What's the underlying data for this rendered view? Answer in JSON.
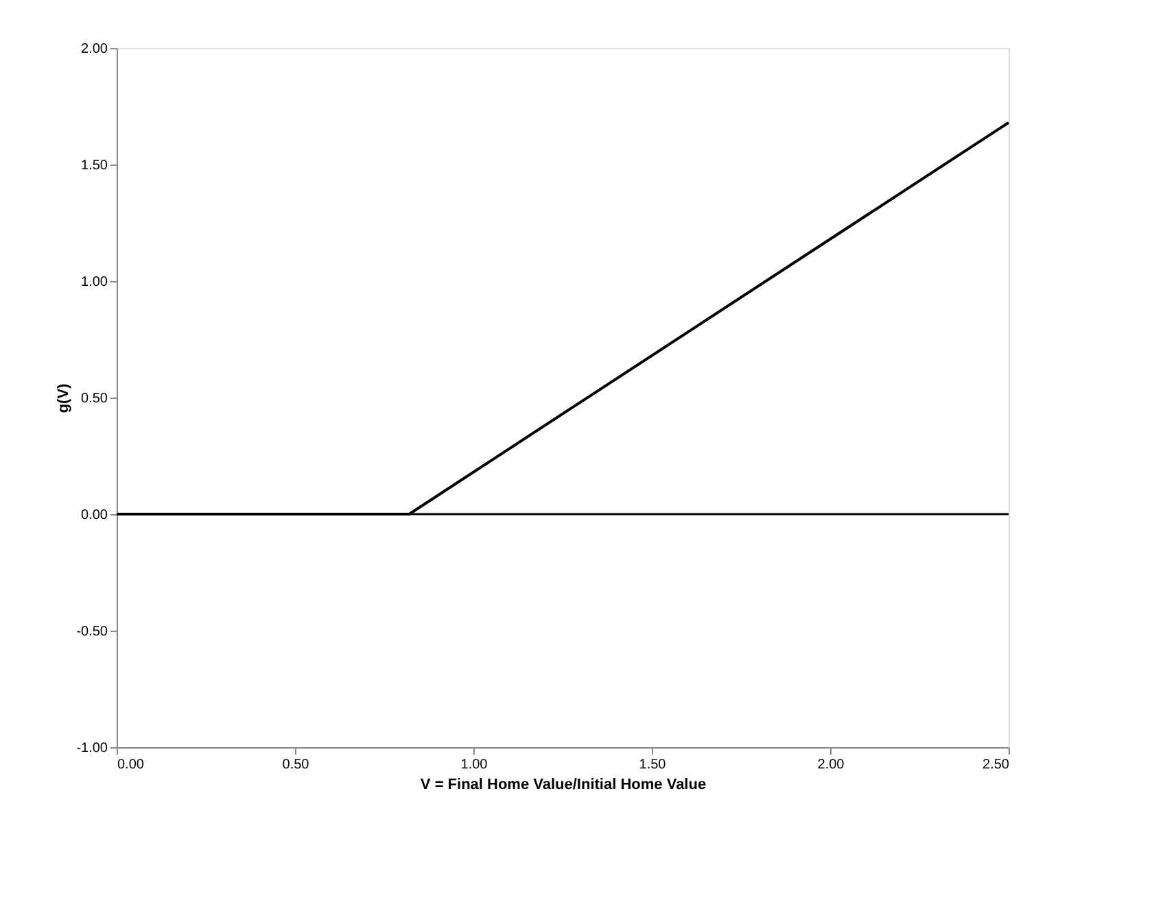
{
  "chart_data": {
    "type": "line",
    "xlabel": "V = Final Home Value/Initial Home Value",
    "ylabel": "g(V)",
    "x": [
      0,
      0.82,
      2.5
    ],
    "series": [
      {
        "color": "#000000",
        "values": [
          0,
          0,
          1.68
        ]
      }
    ],
    "xlim": [
      0,
      2.5
    ],
    "xticks": [
      {
        "value": 0,
        "label": "0.00"
      },
      {
        "value": 0.5,
        "label": "0.50"
      },
      {
        "value": 1,
        "label": "1.00"
      },
      {
        "value": 1.5,
        "label": "1.50"
      },
      {
        "value": 2,
        "label": "2.00"
      },
      {
        "value": 2.5,
        "label": "2.50"
      }
    ],
    "ylim": [
      -1,
      2
    ],
    "yticks": [
      {
        "value": -1,
        "label": "-1.00"
      },
      {
        "value": -0.5,
        "label": "-0.50"
      },
      {
        "value": 0,
        "label": "0.00"
      },
      {
        "value": 0.5,
        "label": "0.50"
      },
      {
        "value": 1,
        "label": "1.00"
      },
      {
        "value": 1.5,
        "label": "1.50"
      },
      {
        "value": 2,
        "label": "2.00"
      }
    ],
    "ref_lines": [
      {
        "axis": "y",
        "value": 0,
        "color": "#000000"
      }
    ],
    "grid": false,
    "legend": false,
    "marker": "none",
    "line_style": "solid"
  }
}
